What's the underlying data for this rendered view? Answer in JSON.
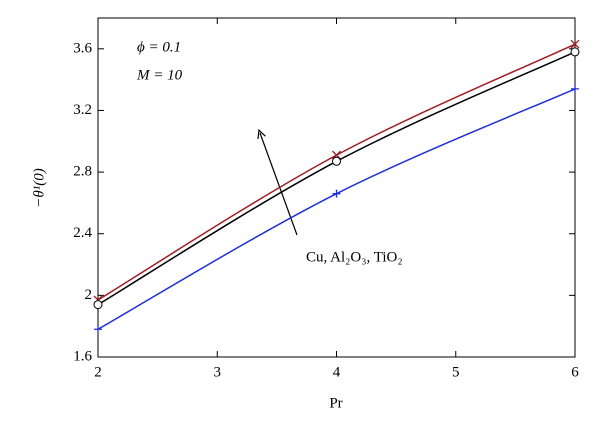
{
  "chart_data": {
    "type": "line",
    "x_label": "Pr",
    "y_label": "−θ¹(0)",
    "annotations": [
      "ϕ = 0.1",
      "M = 10",
      "Cu, Al₂O₃, TiO₂"
    ],
    "x": [
      2,
      4,
      6
    ],
    "series": [
      {
        "color": "#a31b22",
        "marker": "x",
        "values": [
          1.97,
          2.91,
          3.63
        ]
      },
      {
        "color": "#000000",
        "marker": "o",
        "values": [
          1.94,
          2.87,
          3.58
        ]
      },
      {
        "color": "#1f2fd8",
        "marker": "+",
        "values": [
          1.78,
          2.66,
          3.34
        ]
      }
    ],
    "xlim": [
      2,
      6
    ],
    "xticks": [
      2,
      3,
      4,
      5,
      6
    ],
    "ylim": [
      1.6,
      3.8
    ],
    "yticks": [
      1.6,
      2,
      2.4,
      2.8,
      3.2,
      3.6
    ],
    "grid": false
  }
}
